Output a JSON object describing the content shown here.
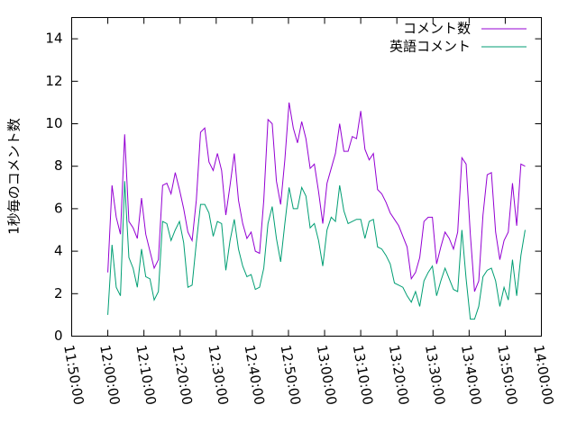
{
  "chart_data": {
    "type": "line",
    "ylabel": "1秒毎のコメント数",
    "x": [
      "12:00:00",
      "12:01:10",
      "12:02:20",
      "12:03:30",
      "12:04:40",
      "12:05:50",
      "12:07:00",
      "12:08:10",
      "12:09:20",
      "12:10:30",
      "12:11:40",
      "12:12:50",
      "12:14:00",
      "12:15:10",
      "12:16:20",
      "12:17:30",
      "12:18:40",
      "12:19:50",
      "12:21:00",
      "12:22:10",
      "12:23:20",
      "12:24:30",
      "12:25:40",
      "12:26:50",
      "12:28:00",
      "12:29:10",
      "12:30:20",
      "12:31:30",
      "12:32:40",
      "12:33:50",
      "12:35:00",
      "12:36:10",
      "12:37:20",
      "12:38:30",
      "12:39:40",
      "12:40:50",
      "12:42:00",
      "12:43:10",
      "12:44:20",
      "12:45:30",
      "12:46:40",
      "12:47:50",
      "12:49:00",
      "12:50:10",
      "12:51:20",
      "12:52:30",
      "12:53:40",
      "12:54:50",
      "12:56:00",
      "12:57:10",
      "12:58:20",
      "12:59:30",
      "13:00:40",
      "13:01:50",
      "13:03:00",
      "13:04:10",
      "13:05:20",
      "13:06:30",
      "13:07:40",
      "13:08:50",
      "13:10:00",
      "13:11:10",
      "13:12:20",
      "13:13:30",
      "13:14:40",
      "13:15:50",
      "13:17:00",
      "13:18:10",
      "13:19:20",
      "13:20:30",
      "13:21:40",
      "13:22:50",
      "13:24:00",
      "13:25:10",
      "13:26:20",
      "13:27:30",
      "13:28:40",
      "13:29:50",
      "13:31:00",
      "13:32:10",
      "13:33:20",
      "13:34:30",
      "13:35:40",
      "13:36:50",
      "13:38:00",
      "13:39:10",
      "13:40:20",
      "13:41:30",
      "13:42:40",
      "13:43:50",
      "13:45:00",
      "13:46:10",
      "13:47:20",
      "13:48:30",
      "13:49:40",
      "13:50:50",
      "13:52:00",
      "13:53:10",
      "13:54:20",
      "13:55:30"
    ],
    "series": [
      {
        "name": "コメント数",
        "color": "#9400d3",
        "values": [
          3.0,
          7.1,
          5.6,
          4.8,
          9.5,
          5.4,
          5.1,
          4.6,
          6.5,
          4.8,
          4.0,
          3.2,
          3.6,
          7.1,
          7.2,
          6.7,
          7.7,
          6.9,
          6.0,
          4.9,
          4.5,
          6.4,
          9.6,
          9.8,
          8.2,
          7.8,
          8.6,
          7.8,
          5.7,
          7.1,
          8.6,
          6.4,
          5.3,
          4.6,
          4.9,
          4.0,
          3.9,
          6.4,
          10.2,
          10.0,
          7.3,
          6.2,
          8.3,
          11.0,
          9.8,
          9.1,
          10.1,
          9.3,
          7.9,
          8.1,
          6.8,
          5.3,
          7.2,
          7.9,
          8.6,
          10.0,
          8.7,
          8.7,
          9.4,
          9.3,
          10.6,
          8.8,
          8.3,
          8.6,
          6.9,
          6.7,
          6.3,
          5.8,
          5.5,
          5.2,
          4.7,
          4.2,
          2.7,
          3.0,
          3.7,
          5.4,
          5.6,
          5.6,
          3.4,
          4.2,
          4.9,
          4.6,
          4.1,
          4.9,
          8.4,
          8.1,
          4.8,
          2.1,
          2.6,
          5.7,
          7.6,
          7.7,
          4.9,
          3.6,
          4.5,
          4.9,
          7.2,
          5.2,
          8.1,
          8.0
        ]
      },
      {
        "name": "英語コメント",
        "color": "#009e73",
        "values": [
          1.0,
          4.3,
          2.3,
          1.9,
          7.3,
          3.7,
          3.2,
          2.3,
          4.1,
          2.8,
          2.7,
          1.7,
          2.1,
          5.4,
          5.3,
          4.5,
          5.0,
          5.4,
          4.4,
          2.3,
          2.4,
          4.4,
          6.2,
          6.2,
          5.8,
          4.7,
          5.4,
          5.3,
          3.1,
          4.5,
          5.5,
          4.1,
          3.3,
          2.8,
          2.9,
          2.2,
          2.3,
          3.2,
          5.3,
          6.1,
          4.6,
          3.5,
          5.3,
          7.0,
          6.0,
          6.0,
          7.0,
          6.6,
          5.1,
          5.3,
          4.5,
          3.3,
          5.0,
          5.6,
          5.4,
          7.1,
          5.9,
          5.3,
          5.4,
          5.5,
          5.5,
          4.6,
          5.4,
          5.5,
          4.2,
          4.1,
          3.8,
          3.4,
          2.5,
          2.4,
          2.3,
          1.9,
          1.6,
          2.1,
          1.4,
          2.6,
          3.0,
          3.3,
          1.9,
          2.6,
          3.2,
          2.7,
          2.2,
          2.1,
          5.0,
          2.7,
          0.8,
          0.8,
          1.4,
          2.8,
          3.1,
          3.2,
          2.6,
          1.4,
          2.3,
          1.7,
          3.6,
          1.9,
          3.8,
          5.0
        ]
      }
    ],
    "xlim": [
      "11:50:00",
      "14:00:00"
    ],
    "xticks": [
      "11:50:00",
      "12:00:00",
      "12:10:00",
      "12:20:00",
      "12:30:00",
      "12:40:00",
      "12:50:00",
      "13:00:00",
      "13:10:00",
      "13:20:00",
      "13:30:00",
      "13:40:00",
      "13:50:00",
      "14:00:00"
    ],
    "ylim": [
      0,
      15
    ],
    "yticks": [
      0,
      2,
      4,
      6,
      8,
      10,
      12,
      14
    ],
    "legend": "upper right"
  }
}
